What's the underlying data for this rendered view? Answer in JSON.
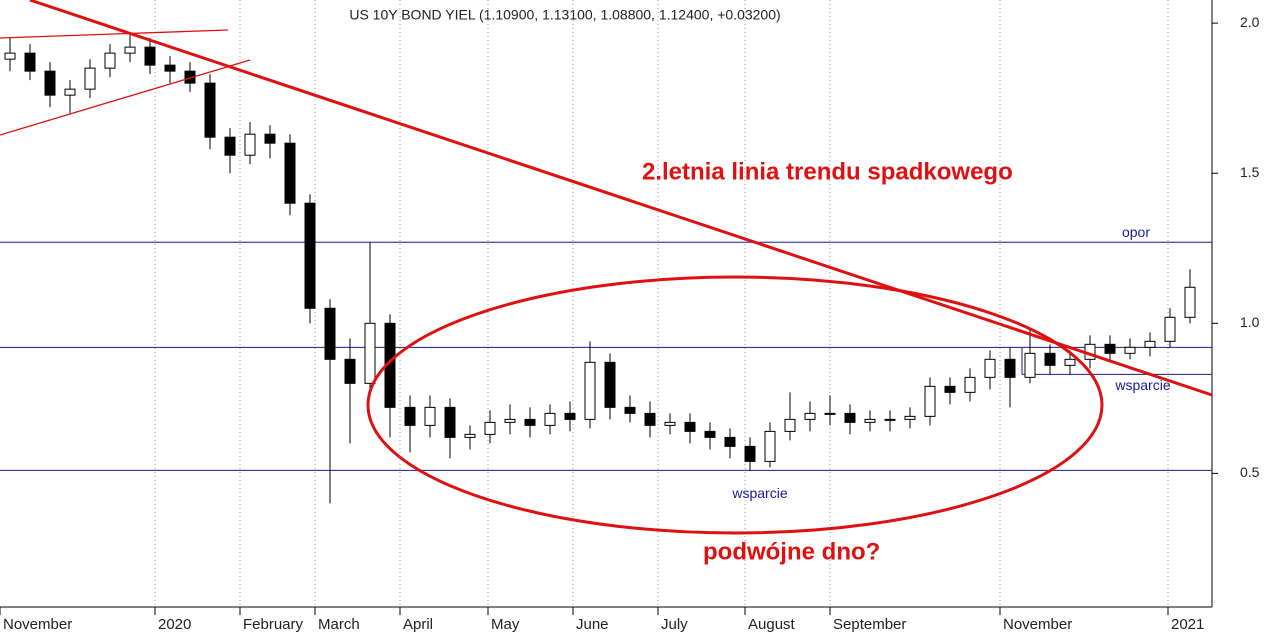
{
  "chart_data": {
    "type": "candlestick",
    "title": "US 10Y BOND YIEL (1.10900, 1.13100, 1.08800, 1.12400, +0.03200)",
    "open": [
      1.88,
      1.9,
      1.84,
      1.76,
      1.78,
      1.85,
      1.9,
      1.92,
      1.86,
      1.84,
      1.8,
      1.62,
      1.56,
      1.63,
      1.6,
      1.4,
      1.05,
      0.88,
      0.8,
      1.0,
      0.72,
      0.66,
      0.72,
      0.62,
      0.63,
      0.67,
      0.68,
      0.66,
      0.7,
      0.68,
      0.87,
      0.72,
      0.7,
      0.66,
      0.67,
      0.64,
      0.62,
      0.59,
      0.54,
      0.64,
      0.68,
      0.7,
      0.7,
      0.67,
      0.68,
      0.68,
      0.69,
      0.79,
      0.77,
      0.82,
      0.88,
      0.82,
      0.9,
      0.86,
      0.88,
      0.93,
      0.9,
      0.92,
      0.94,
      1.02
    ],
    "high": [
      1.95,
      1.93,
      1.87,
      1.81,
      1.88,
      1.93,
      1.96,
      1.95,
      1.89,
      1.87,
      1.83,
      1.65,
      1.67,
      1.66,
      1.63,
      1.43,
      1.08,
      0.95,
      1.27,
      1.03,
      0.76,
      0.76,
      0.75,
      0.66,
      0.71,
      0.73,
      0.72,
      0.73,
      0.74,
      0.94,
      0.9,
      0.76,
      0.74,
      0.7,
      0.7,
      0.67,
      0.65,
      0.62,
      0.67,
      0.77,
      0.74,
      0.76,
      0.73,
      0.71,
      0.71,
      0.72,
      0.82,
      0.82,
      0.85,
      0.91,
      0.92,
      0.98,
      0.93,
      0.91,
      0.96,
      0.96,
      0.95,
      0.97,
      1.05,
      1.18
    ],
    "low": [
      1.84,
      1.81,
      1.72,
      1.7,
      1.75,
      1.82,
      1.87,
      1.83,
      1.8,
      1.77,
      1.58,
      1.5,
      1.53,
      1.55,
      1.36,
      1.0,
      0.4,
      0.6,
      0.76,
      0.62,
      0.57,
      0.62,
      0.55,
      0.58,
      0.6,
      0.63,
      0.62,
      0.63,
      0.64,
      0.65,
      0.68,
      0.67,
      0.62,
      0.63,
      0.6,
      0.58,
      0.55,
      0.51,
      0.52,
      0.61,
      0.64,
      0.66,
      0.63,
      0.64,
      0.64,
      0.65,
      0.66,
      0.73,
      0.74,
      0.78,
      0.72,
      0.8,
      0.83,
      0.83,
      0.85,
      0.87,
      0.88,
      0.89,
      0.92,
      1.0
    ],
    "close": [
      1.9,
      1.84,
      1.76,
      1.78,
      1.85,
      1.9,
      1.92,
      1.86,
      1.84,
      1.8,
      1.62,
      1.56,
      1.63,
      1.6,
      1.4,
      1.05,
      0.88,
      0.8,
      1.0,
      0.72,
      0.66,
      0.72,
      0.62,
      0.63,
      0.67,
      0.68,
      0.66,
      0.7,
      0.68,
      0.87,
      0.72,
      0.7,
      0.66,
      0.67,
      0.64,
      0.62,
      0.59,
      0.54,
      0.64,
      0.68,
      0.7,
      0.7,
      0.67,
      0.68,
      0.68,
      0.69,
      0.79,
      0.77,
      0.82,
      0.88,
      0.82,
      0.9,
      0.86,
      0.88,
      0.93,
      0.9,
      0.92,
      0.94,
      1.02,
      1.12
    ],
    "xlim": [
      0,
      60.6
    ],
    "xticks": [
      {
        "value": 0,
        "label": "November"
      },
      {
        "value": 7.75,
        "label": "2020"
      },
      {
        "value": 12,
        "label": "February"
      },
      {
        "value": 15.75,
        "label": "March"
      },
      {
        "value": 20,
        "label": "April"
      },
      {
        "value": 24.4,
        "label": "May"
      },
      {
        "value": 28.65,
        "label": "June"
      },
      {
        "value": 32.9,
        "label": "July"
      },
      {
        "value": 37.25,
        "label": "August"
      },
      {
        "value": 41.5,
        "label": "September"
      },
      {
        "value": 50,
        "label": "November"
      },
      {
        "value": 58.4,
        "label": "2021"
      }
    ],
    "ylim": [
      0.055,
      2.077
    ],
    "yticks": [
      0.5,
      {
        "value": 1.0,
        "label": "1.0"
      },
      1.5,
      {
        "value": 2.0,
        "label": "2.0"
      }
    ],
    "grid": true,
    "levels": [
      {
        "value": 1.27,
        "label": "opor"
      },
      {
        "value": 0.92
      },
      {
        "value": 0.83,
        "label": "wsparcie"
      },
      {
        "value": 0.51,
        "label": "wsparcie"
      }
    ],
    "annotations": [
      "2.letnia linia trendu spadkowego",
      "podwójne dno?"
    ]
  }
}
